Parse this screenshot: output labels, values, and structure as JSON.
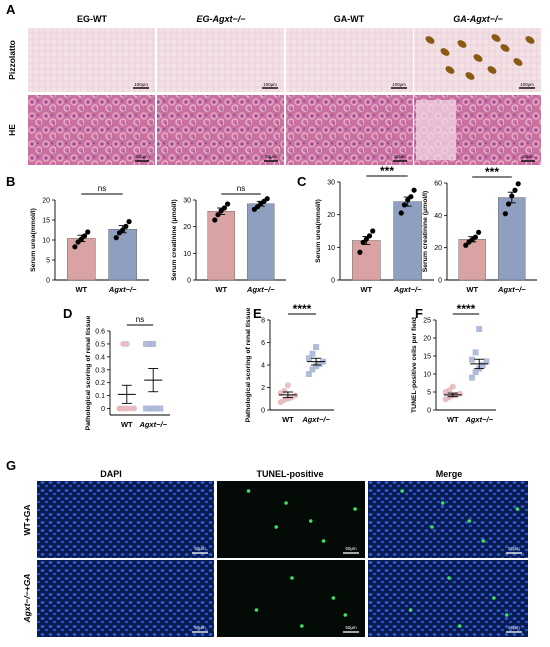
{
  "colors": {
    "wt": "#d9a3a3",
    "ko": "#8e9fbf",
    "wt_pt": "#e6b8bd",
    "ko_pt": "#a8b6d6",
    "dapi": "#1f4fd6",
    "tunel": "#3fe06a"
  },
  "panelA": {
    "letter": "A",
    "columns": [
      "EG-WT",
      "EG-Agxt−/−",
      "GA-WT",
      "GA-Agxt−/−"
    ],
    "rows": [
      "Pizzolatto",
      "HE"
    ],
    "scale": "100μm",
    "scale_he": "50μm"
  },
  "panelG": {
    "letter": "G",
    "columns": [
      "DAPI",
      "TUNEL-positive",
      "Merge"
    ],
    "rows": [
      "WT+GA",
      "Agxt−/−+GA"
    ],
    "scale": "50μm"
  },
  "chart_data": [
    {
      "panel": "B",
      "type": "bar",
      "categories": [
        "WT",
        "Agxt−/−"
      ],
      "ylabel": "Serum urea(mmol/l)",
      "ylim": [
        0,
        20
      ],
      "yticks": [
        0,
        5,
        10,
        15,
        20
      ],
      "values": [
        10.4,
        12.7
      ],
      "sem": [
        0.8,
        0.9
      ],
      "points": [
        [
          8.3,
          9.5,
          10.2,
          11.0,
          12.0
        ],
        [
          10.6,
          11.8,
          12.5,
          13.4,
          14.6
        ]
      ],
      "significance": "ns"
    },
    {
      "panel": "B",
      "type": "bar",
      "categories": [
        "WT",
        "Agxt−/−"
      ],
      "ylabel": "Serum creatinine (μmol/l)",
      "ylim": [
        0,
        30
      ],
      "yticks": [
        0,
        10,
        20,
        30
      ],
      "values": [
        25.8,
        28.6
      ],
      "sem": [
        1.2,
        0.9
      ],
      "points": [
        [
          22.5,
          24.5,
          26.0,
          27.0,
          28.5
        ],
        [
          26.5,
          27.5,
          28.7,
          29.5,
          30.5
        ]
      ],
      "significance": "ns"
    },
    {
      "panel": "C",
      "type": "bar",
      "categories": [
        "WT",
        "Agxt−/−"
      ],
      "ylabel": "Serum urea(mmol/l)",
      "ylim": [
        0,
        30
      ],
      "yticks": [
        0,
        10,
        20,
        30
      ],
      "values": [
        12.1,
        24.0
      ],
      "sem": [
        1.2,
        1.4
      ],
      "points": [
        [
          8.5,
          11.5,
          12.5,
          13.5,
          15.0
        ],
        [
          20.5,
          23.0,
          24.5,
          25.5,
          27.5
        ]
      ],
      "significance": "***"
    },
    {
      "panel": "C",
      "type": "bar",
      "categories": [
        "WT",
        "Agxt−/−"
      ],
      "ylabel": "Serum creatinine (μmol/l)",
      "ylim": [
        0,
        60
      ],
      "yticks": [
        0,
        20,
        40,
        60
      ],
      "values": [
        25.2,
        51.0
      ],
      "sem": [
        1.6,
        3.3
      ],
      "points": [
        [
          21.5,
          23.5,
          25.0,
          26.5,
          29.5
        ],
        [
          41.0,
          47.0,
          52.0,
          55.5,
          59.5
        ]
      ],
      "significance": "***"
    },
    {
      "panel": "D",
      "type": "scatter",
      "categories": [
        "WT",
        "Agxt−/−"
      ],
      "ylabel": "Pathological scoring of renal tissue",
      "ylim": [
        -0.05,
        0.6
      ],
      "yticks": [
        0.0,
        0.1,
        0.2,
        0.3,
        0.4,
        0.5,
        0.6
      ],
      "values": [
        0.11,
        0.22
      ],
      "sem": [
        0.07,
        0.09
      ],
      "points": [
        [
          0,
          0,
          0,
          0,
          0,
          0,
          0.5,
          0.5
        ],
        [
          0,
          0,
          0,
          0,
          0,
          0.5,
          0.5,
          0.5
        ]
      ],
      "significance": "ns"
    },
    {
      "panel": "E",
      "type": "scatter",
      "categories": [
        "WT",
        "Agxt−/−"
      ],
      "ylabel": "Pathological scoring of renal tissue",
      "ylim": [
        0,
        8
      ],
      "yticks": [
        0,
        2,
        4,
        6,
        8
      ],
      "values": [
        1.35,
        4.3
      ],
      "sem": [
        0.25,
        0.3
      ],
      "points": [
        [
          0.7,
          0.9,
          1.0,
          1.1,
          1.3,
          1.5,
          1.7,
          2.2
        ],
        [
          3.2,
          3.6,
          3.9,
          4.1,
          4.3,
          4.6,
          5.0,
          5.6
        ]
      ],
      "significance": "****"
    },
    {
      "panel": "F",
      "type": "scatter",
      "categories": [
        "WT",
        "Agxt−/−"
      ],
      "ylabel": "TUNEL-positive cells per field",
      "ylim": [
        0,
        25
      ],
      "yticks": [
        0,
        5,
        10,
        15,
        20,
        25
      ],
      "values": [
        4.2,
        12.8
      ],
      "sem": [
        0.5,
        1.3
      ],
      "points": [
        [
          3.0,
          3.5,
          4.0,
          4.2,
          4.5,
          5.0,
          5.5,
          6.5
        ],
        [
          9.0,
          10.5,
          11.5,
          12.5,
          13.5,
          14.0,
          16.0,
          22.5
        ]
      ],
      "significance": "****"
    }
  ]
}
